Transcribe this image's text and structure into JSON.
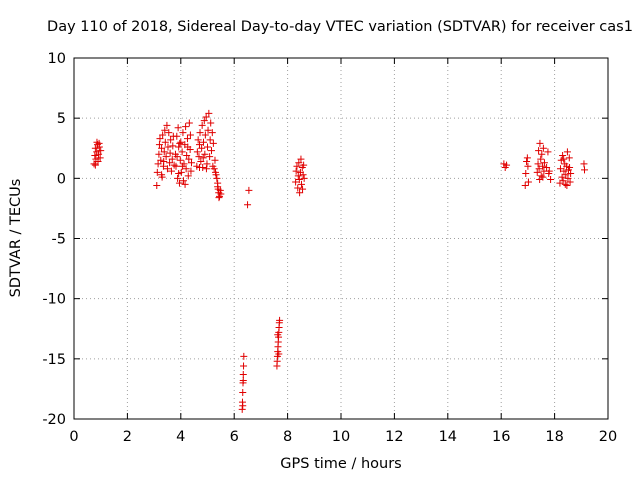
{
  "chart_data": {
    "type": "scatter",
    "title": "Day 110 of 2018, Sidereal Day-to-day VTEC variation (SDTVAR) for receiver cas1",
    "xlabel": "GPS time / hours",
    "ylabel": "SDTVAR / TECUs",
    "xlim": [
      0,
      20
    ],
    "ylim": [
      -20,
      10
    ],
    "xticks": [
      0,
      2,
      4,
      6,
      8,
      10,
      12,
      14,
      16,
      18,
      20
    ],
    "yticks": [
      -20,
      -15,
      -10,
      -5,
      0,
      5,
      10
    ],
    "grid": true,
    "marker": "+",
    "marker_color": "#e00000",
    "series": [
      {
        "name": "SDTVAR",
        "points": [
          [
            0.75,
            1.2
          ],
          [
            0.78,
            1.9
          ],
          [
            0.8,
            2.5
          ],
          [
            0.82,
            1.6
          ],
          [
            0.85,
            2.2
          ],
          [
            0.88,
            2.8
          ],
          [
            0.9,
            1.4
          ],
          [
            0.92,
            2.0
          ],
          [
            0.95,
            2.6
          ],
          [
            0.98,
            1.7
          ],
          [
            1.0,
            2.3
          ],
          [
            0.86,
            3.0
          ],
          [
            0.8,
            1.1
          ],
          [
            0.94,
            2.9
          ],
          [
            3.1,
            -0.6
          ],
          [
            3.12,
            0.5
          ],
          [
            3.15,
            1.2
          ],
          [
            3.18,
            2.0
          ],
          [
            3.2,
            2.8
          ],
          [
            3.22,
            3.3
          ],
          [
            3.25,
            1.5
          ],
          [
            3.28,
            2.5
          ],
          [
            3.3,
            0.1
          ],
          [
            3.32,
            3.6
          ],
          [
            3.35,
            1.0
          ],
          [
            3.38,
            2.2
          ],
          [
            3.4,
            4.0
          ],
          [
            3.42,
            3.0
          ],
          [
            3.45,
            1.8
          ],
          [
            3.48,
            4.4
          ],
          [
            3.5,
            0.8
          ],
          [
            3.52,
            2.6
          ],
          [
            3.55,
            3.8
          ],
          [
            3.58,
            1.3
          ],
          [
            3.6,
            2.1
          ],
          [
            3.62,
            3.2
          ],
          [
            3.65,
            0.6
          ],
          [
            3.68,
            1.6
          ],
          [
            3.7,
            2.7
          ],
          [
            3.72,
            3.5
          ],
          [
            3.75,
            1.1
          ],
          [
            3.28,
            0.3
          ],
          [
            3.36,
            1.4
          ],
          [
            3.8,
            2.0
          ],
          [
            3.82,
            1.0
          ],
          [
            3.85,
            3.5
          ],
          [
            3.88,
            0.0
          ],
          [
            3.9,
            4.2
          ],
          [
            3.92,
            2.6
          ],
          [
            3.95,
            -0.4
          ],
          [
            3.98,
            1.5
          ],
          [
            4.0,
            3.0
          ],
          [
            4.02,
            0.5
          ],
          [
            4.05,
            2.2
          ],
          [
            4.08,
            3.8
          ],
          [
            4.1,
            -0.2
          ],
          [
            4.12,
            1.2
          ],
          [
            4.15,
            2.8
          ],
          [
            4.18,
            4.3
          ],
          [
            4.2,
            0.8
          ],
          [
            4.22,
            1.9
          ],
          [
            4.25,
            3.3
          ],
          [
            4.28,
            0.2
          ],
          [
            4.3,
            1.6
          ],
          [
            4.32,
            4.6
          ],
          [
            4.35,
            2.4
          ],
          [
            4.38,
            0.6
          ],
          [
            4.4,
            1.3
          ],
          [
            3.86,
            1.8
          ],
          [
            3.96,
            2.9
          ],
          [
            4.06,
            1.0
          ],
          [
            4.16,
            -0.5
          ],
          [
            4.26,
            2.6
          ],
          [
            4.36,
            3.6
          ],
          [
            3.92,
            0.4
          ],
          [
            4.6,
            1.0
          ],
          [
            4.62,
            2.2
          ],
          [
            4.65,
            3.2
          ],
          [
            4.68,
            1.8
          ],
          [
            4.7,
            2.8
          ],
          [
            4.72,
            3.8
          ],
          [
            4.75,
            1.4
          ],
          [
            4.78,
            2.5
          ],
          [
            4.8,
            4.4
          ],
          [
            4.82,
            0.9
          ],
          [
            4.85,
            3.0
          ],
          [
            4.88,
            4.8
          ],
          [
            4.9,
            2.0
          ],
          [
            4.92,
            3.6
          ],
          [
            4.95,
            5.1
          ],
          [
            4.98,
            1.2
          ],
          [
            5.0,
            2.6
          ],
          [
            5.02,
            4.0
          ],
          [
            5.05,
            5.4
          ],
          [
            5.08,
            1.8
          ],
          [
            5.1,
            3.2
          ],
          [
            5.12,
            4.6
          ],
          [
            5.15,
            2.3
          ],
          [
            5.18,
            3.8
          ],
          [
            5.2,
            1.0
          ],
          [
            5.22,
            2.9
          ],
          [
            5.25,
            0.8
          ],
          [
            5.28,
            1.5
          ],
          [
            5.3,
            0.5
          ],
          [
            5.32,
            0.3
          ],
          [
            5.35,
            0.0
          ],
          [
            5.38,
            -0.4
          ],
          [
            5.4,
            -0.9
          ],
          [
            5.42,
            -1.2
          ],
          [
            5.45,
            -1.5
          ],
          [
            5.48,
            -1.0
          ],
          [
            5.5,
            -1.3
          ],
          [
            5.38,
            -0.7
          ],
          [
            5.43,
            -1.6
          ],
          [
            4.7,
            0.9
          ],
          [
            4.84,
            1.7
          ],
          [
            4.96,
            0.8
          ],
          [
            6.3,
            -19.2
          ],
          [
            6.31,
            -18.6
          ],
          [
            6.32,
            -17.8
          ],
          [
            6.33,
            -17.0
          ],
          [
            6.34,
            -16.3
          ],
          [
            6.35,
            -15.6
          ],
          [
            6.36,
            -14.8
          ],
          [
            6.32,
            -18.9
          ],
          [
            6.34,
            -16.8
          ],
          [
            6.5,
            -2.2
          ],
          [
            6.55,
            -1.0
          ],
          [
            7.6,
            -15.6
          ],
          [
            7.61,
            -15.2
          ],
          [
            7.62,
            -14.8
          ],
          [
            7.63,
            -14.4
          ],
          [
            7.64,
            -14.0
          ],
          [
            7.65,
            -13.6
          ],
          [
            7.66,
            -13.2
          ],
          [
            7.67,
            -12.8
          ],
          [
            7.68,
            -12.4
          ],
          [
            7.69,
            -12.0
          ],
          [
            7.7,
            -11.8
          ],
          [
            7.63,
            -13.0
          ],
          [
            7.67,
            -14.6
          ],
          [
            8.3,
            -0.3
          ],
          [
            8.32,
            0.6
          ],
          [
            8.35,
            1.0
          ],
          [
            8.38,
            -0.8
          ],
          [
            8.4,
            0.2
          ],
          [
            8.42,
            1.3
          ],
          [
            8.45,
            -1.2
          ],
          [
            8.48,
            0.5
          ],
          [
            8.5,
            1.6
          ],
          [
            8.52,
            -0.5
          ],
          [
            8.55,
            0.9
          ],
          [
            8.58,
            0.3
          ],
          [
            8.6,
            1.1
          ],
          [
            8.62,
            0.0
          ],
          [
            8.44,
            -0.1
          ],
          [
            8.56,
            -0.9
          ],
          [
            16.1,
            1.2
          ],
          [
            16.15,
            0.9
          ],
          [
            16.2,
            1.1
          ],
          [
            16.9,
            -0.6
          ],
          [
            16.92,
            0.4
          ],
          [
            16.95,
            1.4
          ],
          [
            16.98,
            1.7
          ],
          [
            17.0,
            1.0
          ],
          [
            17.02,
            -0.3
          ],
          [
            17.35,
            0.5
          ],
          [
            17.38,
            1.2
          ],
          [
            17.4,
            2.3
          ],
          [
            17.42,
            0.8
          ],
          [
            17.45,
            2.9
          ],
          [
            17.48,
            1.6
          ],
          [
            17.5,
            0.2
          ],
          [
            17.52,
            2.0
          ],
          [
            17.55,
            1.0
          ],
          [
            17.58,
            2.5
          ],
          [
            17.6,
            0.6
          ],
          [
            17.62,
            1.3
          ],
          [
            17.44,
            -0.1
          ],
          [
            17.56,
            0.1
          ],
          [
            17.7,
            0.9
          ],
          [
            17.75,
            2.2
          ],
          [
            17.8,
            0.6
          ],
          [
            17.85,
            -0.1
          ],
          [
            17.78,
            0.4
          ],
          [
            18.2,
            -0.4
          ],
          [
            18.22,
            0.8
          ],
          [
            18.25,
            1.5
          ],
          [
            18.28,
            0.1
          ],
          [
            18.3,
            1.9
          ],
          [
            18.32,
            -0.2
          ],
          [
            18.35,
            0.6
          ],
          [
            18.38,
            1.2
          ],
          [
            18.4,
            -0.5
          ],
          [
            18.42,
            0.3
          ],
          [
            18.45,
            1.0
          ],
          [
            18.48,
            2.2
          ],
          [
            18.5,
            0.0
          ],
          [
            18.52,
            0.7
          ],
          [
            18.55,
            1.7
          ],
          [
            18.58,
            -0.3
          ],
          [
            18.6,
            0.4
          ],
          [
            18.34,
            1.6
          ],
          [
            18.46,
            -0.6
          ],
          [
            18.56,
            0.9
          ],
          [
            19.1,
            1.2
          ],
          [
            19.12,
            0.7
          ]
        ]
      }
    ]
  }
}
